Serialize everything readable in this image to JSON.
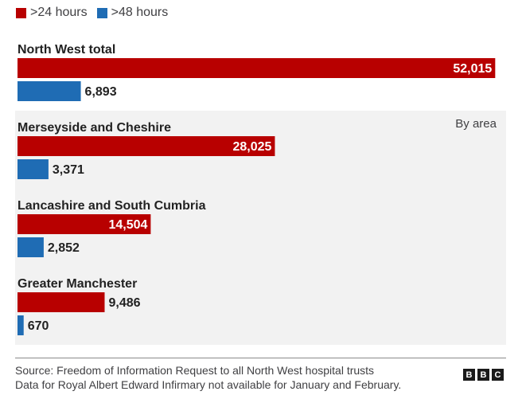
{
  "chart_data": {
    "type": "bar",
    "orientation": "horizontal",
    "legend": {
      "placement": "top-left",
      "items": [
        {
          "label": ">24 hours",
          "color": "#b80000"
        },
        {
          "label": ">48 hours",
          "color": "#1f6cb4"
        }
      ]
    },
    "panel_label": "By area",
    "categories": [
      "North West total",
      "Merseyside and Cheshire",
      "Lancashire and South Cumbria",
      "Greater Manchester"
    ],
    "series": [
      {
        "name": ">24 hours",
        "color": "#b80000",
        "values": [
          52015,
          28025,
          14504,
          9486
        ]
      },
      {
        "name": ">48 hours",
        "color": "#1f6cb4",
        "values": [
          6893,
          3371,
          2852,
          670
        ]
      }
    ],
    "value_labels": [
      [
        ">24 hours",
        "52,015",
        "28,025",
        "14,504",
        "9,486"
      ],
      [
        ">48 hours",
        "6,893",
        "3,371",
        "2,852",
        "670"
      ]
    ],
    "xlim": [
      0,
      53200
    ],
    "grid": false
  },
  "footer": {
    "source_line1": "Source: Freedom of Information Request to all North West hospital trusts",
    "source_line2": "Data for Royal Albert Edward Infirmary not available for January and February.",
    "logo_letters": [
      "B",
      "B",
      "C"
    ]
  },
  "colors": {
    "panel_background": "#f2f2f2",
    "text": "#222222"
  }
}
